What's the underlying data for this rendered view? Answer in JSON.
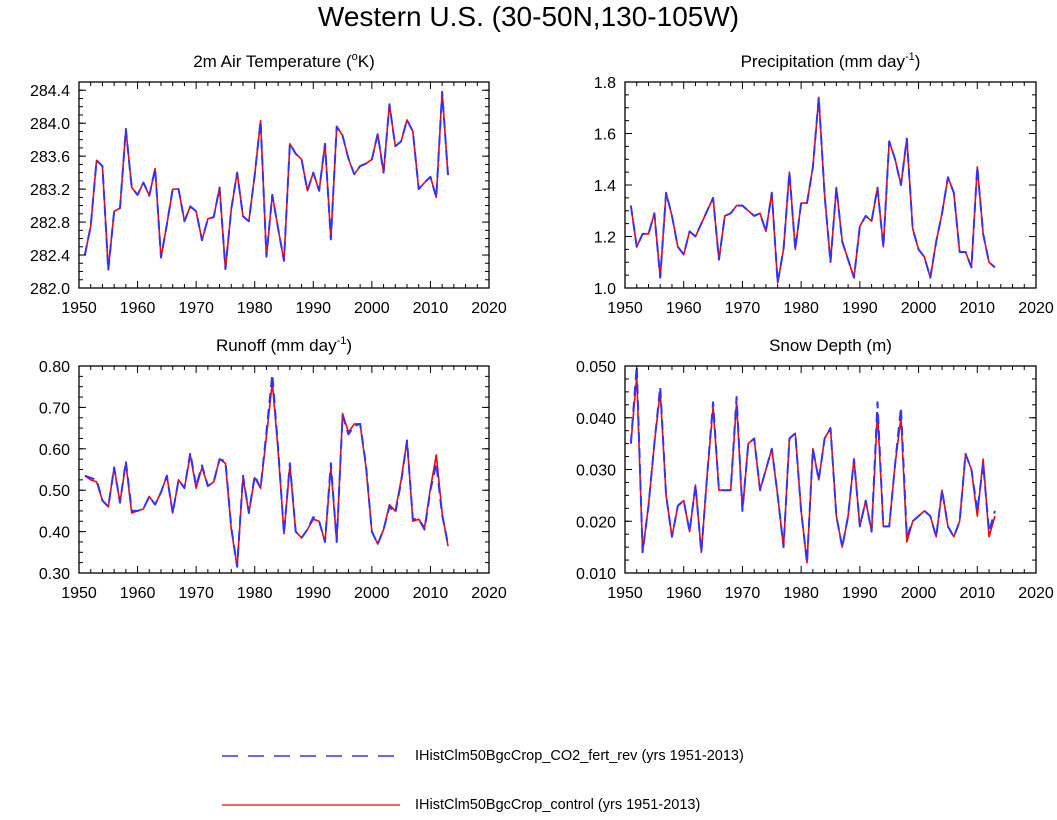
{
  "title": "Western U.S. (30-50N,130-105W)",
  "colors": {
    "series_a": "#3333ff",
    "series_b": "#ff0000",
    "axis": "#000000"
  },
  "legend": {
    "position": "bottom-center",
    "entries": [
      {
        "label": "IHistClm50BgcCrop_CO2_fert_rev (yrs 1951-2013)",
        "color": "#3333ff",
        "style": "dashed"
      },
      {
        "label": "IHistClm50BgcCrop_control (yrs 1951-2013)",
        "color": "#ff0000",
        "style": "solid"
      }
    ]
  },
  "chart_data": [
    {
      "type": "line",
      "title": "2m Air Temperature (",
      "title_sup": "o",
      "title_after": "K)",
      "xlim": [
        1950,
        2020
      ],
      "xticks": [
        1950,
        1960,
        1970,
        1980,
        1990,
        2000,
        2010,
        2020
      ],
      "ylim": [
        282.0,
        284.5
      ],
      "yticks": [
        282.0,
        282.4,
        282.8,
        283.2,
        283.6,
        284.0,
        284.4
      ],
      "ytick_labels": [
        "282.0",
        "282.4",
        "282.8",
        "283.2",
        "283.6",
        "284.0",
        "284.4"
      ],
      "x_start": 1951,
      "series": [
        {
          "values": [
            282.4,
            282.75,
            283.55,
            283.48,
            282.22,
            282.93,
            282.97,
            283.93,
            283.22,
            283.13,
            283.28,
            283.12,
            283.45,
            282.37,
            282.77,
            283.2,
            283.2,
            282.81,
            282.99,
            282.93,
            282.58,
            282.84,
            282.86,
            283.22,
            282.23,
            282.96,
            283.4,
            282.87,
            282.81,
            283.37,
            284.03,
            282.38,
            283.13,
            282.72,
            282.33,
            283.75,
            283.63,
            283.56,
            283.18,
            283.4,
            283.18,
            283.75,
            282.59,
            283.96,
            283.85,
            283.57,
            283.38,
            283.48,
            283.51,
            283.56,
            283.87,
            283.4,
            284.23,
            283.72,
            283.78,
            284.04,
            283.9,
            283.2,
            283.28,
            283.35,
            283.1,
            284.38,
            283.37
          ]
        },
        {
          "values": [
            282.4,
            282.75,
            283.55,
            283.48,
            282.22,
            282.93,
            282.97,
            283.93,
            283.22,
            283.13,
            283.28,
            283.12,
            283.45,
            282.37,
            282.77,
            283.2,
            283.2,
            282.81,
            282.99,
            282.93,
            282.58,
            282.84,
            282.86,
            283.22,
            282.23,
            282.96,
            283.4,
            282.87,
            282.81,
            283.37,
            284.03,
            282.38,
            283.13,
            282.72,
            282.33,
            283.75,
            283.63,
            283.56,
            283.18,
            283.4,
            283.18,
            283.75,
            282.59,
            283.96,
            283.85,
            283.57,
            283.38,
            283.48,
            283.51,
            283.56,
            283.87,
            283.4,
            284.23,
            283.72,
            283.78,
            284.04,
            283.9,
            283.2,
            283.28,
            283.35,
            283.1,
            284.38,
            283.37
          ]
        }
      ]
    },
    {
      "type": "line",
      "title": "Precipitation (mm day",
      "title_sup": "-1",
      "title_after": ")",
      "xlim": [
        1950,
        2020
      ],
      "xticks": [
        1950,
        1960,
        1970,
        1980,
        1990,
        2000,
        2010,
        2020
      ],
      "ylim": [
        1.0,
        1.8
      ],
      "yticks": [
        1.0,
        1.2,
        1.4,
        1.6,
        1.8
      ],
      "ytick_labels": [
        "1.0",
        "1.2",
        "1.4",
        "1.6",
        "1.8"
      ],
      "x_start": 1951,
      "series": [
        {
          "values": [
            1.32,
            1.16,
            1.21,
            1.21,
            1.29,
            1.04,
            1.37,
            1.28,
            1.16,
            1.13,
            1.22,
            1.2,
            1.25,
            1.3,
            1.35,
            1.11,
            1.28,
            1.29,
            1.32,
            1.32,
            1.3,
            1.28,
            1.29,
            1.22,
            1.37,
            1.02,
            1.15,
            1.45,
            1.15,
            1.33,
            1.33,
            1.47,
            1.74,
            1.36,
            1.1,
            1.39,
            1.18,
            1.11,
            1.04,
            1.24,
            1.28,
            1.26,
            1.39,
            1.16,
            1.57,
            1.5,
            1.4,
            1.58,
            1.23,
            1.15,
            1.12,
            1.04,
            1.18,
            1.29,
            1.43,
            1.37,
            1.14,
            1.14,
            1.08,
            1.47,
            1.21,
            1.1,
            1.08
          ]
        },
        {
          "values": [
            1.32,
            1.16,
            1.21,
            1.21,
            1.29,
            1.04,
            1.37,
            1.28,
            1.16,
            1.13,
            1.22,
            1.2,
            1.25,
            1.3,
            1.35,
            1.11,
            1.28,
            1.29,
            1.32,
            1.32,
            1.3,
            1.28,
            1.29,
            1.22,
            1.37,
            1.02,
            1.15,
            1.45,
            1.15,
            1.33,
            1.33,
            1.47,
            1.74,
            1.36,
            1.1,
            1.39,
            1.18,
            1.11,
            1.04,
            1.24,
            1.28,
            1.26,
            1.39,
            1.16,
            1.57,
            1.5,
            1.4,
            1.58,
            1.23,
            1.15,
            1.12,
            1.04,
            1.18,
            1.29,
            1.43,
            1.37,
            1.14,
            1.14,
            1.08,
            1.47,
            1.21,
            1.1,
            1.08
          ]
        }
      ]
    },
    {
      "type": "line",
      "title": "Runoff (mm day",
      "title_sup": "-1",
      "title_after": ")",
      "xlim": [
        1950,
        2020
      ],
      "xticks": [
        1950,
        1960,
        1970,
        1980,
        1990,
        2000,
        2010,
        2020
      ],
      "ylim": [
        0.3,
        0.8
      ],
      "yticks": [
        0.3,
        0.4,
        0.5,
        0.6,
        0.7,
        0.8
      ],
      "ytick_labels": [
        "0.30",
        "0.40",
        "0.50",
        "0.60",
        "0.70",
        "0.80"
      ],
      "x_start": 1951,
      "series": [
        {
          "values": [
            0.535,
            0.53,
            0.525,
            0.475,
            0.46,
            0.555,
            0.47,
            0.57,
            0.45,
            0.45,
            0.455,
            0.485,
            0.465,
            0.495,
            0.535,
            0.445,
            0.525,
            0.505,
            0.59,
            0.51,
            0.56,
            0.51,
            0.52,
            0.575,
            0.57,
            0.41,
            0.315,
            0.535,
            0.445,
            0.535,
            0.505,
            0.64,
            0.78,
            0.6,
            0.395,
            0.565,
            0.4,
            0.385,
            0.405,
            0.435,
            0.425,
            0.375,
            0.565,
            0.375,
            0.68,
            0.635,
            0.655,
            0.66,
            0.56,
            0.4,
            0.37,
            0.405,
            0.46,
            0.445,
            0.52,
            0.62,
            0.43,
            0.43,
            0.405,
            0.5,
            0.565,
            0.44,
            0.37
          ]
        },
        {
          "values": [
            0.535,
            0.525,
            0.52,
            0.475,
            0.46,
            0.555,
            0.47,
            0.565,
            0.445,
            0.45,
            0.455,
            0.485,
            0.465,
            0.495,
            0.535,
            0.445,
            0.525,
            0.505,
            0.585,
            0.505,
            0.555,
            0.51,
            0.52,
            0.575,
            0.565,
            0.405,
            0.315,
            0.53,
            0.445,
            0.53,
            0.505,
            0.63,
            0.76,
            0.595,
            0.395,
            0.56,
            0.4,
            0.385,
            0.405,
            0.43,
            0.425,
            0.375,
            0.555,
            0.375,
            0.685,
            0.64,
            0.66,
            0.66,
            0.555,
            0.4,
            0.37,
            0.405,
            0.465,
            0.45,
            0.525,
            0.62,
            0.425,
            0.43,
            0.41,
            0.505,
            0.585,
            0.445,
            0.365
          ]
        }
      ]
    },
    {
      "type": "line",
      "title": "Snow Depth (m)",
      "title_sup": "",
      "title_after": "",
      "xlim": [
        1950,
        2020
      ],
      "xticks": [
        1950,
        1960,
        1970,
        1980,
        1990,
        2000,
        2010,
        2020
      ],
      "ylim": [
        0.01,
        0.05
      ],
      "yticks": [
        0.01,
        0.02,
        0.03,
        0.04,
        0.05
      ],
      "ytick_labels": [
        "0.010",
        "0.020",
        "0.030",
        "0.040",
        "0.050"
      ],
      "x_start": 1951,
      "series": [
        {
          "values": [
            0.035,
            0.05,
            0.014,
            0.023,
            0.035,
            0.046,
            0.025,
            0.017,
            0.023,
            0.024,
            0.018,
            0.027,
            0.014,
            0.029,
            0.043,
            0.026,
            0.026,
            0.026,
            0.044,
            0.022,
            0.035,
            0.036,
            0.026,
            0.03,
            0.034,
            0.025,
            0.015,
            0.036,
            0.037,
            0.022,
            0.012,
            0.034,
            0.028,
            0.036,
            0.038,
            0.021,
            0.015,
            0.021,
            0.032,
            0.019,
            0.024,
            0.018,
            0.043,
            0.019,
            0.019,
            0.031,
            0.042,
            0.017,
            0.02,
            0.021,
            0.022,
            0.021,
            0.017,
            0.026,
            0.019,
            0.017,
            0.02,
            0.033,
            0.03,
            0.022,
            0.031,
            0.018,
            0.022
          ]
        },
        {
          "values": [
            0.035,
            0.048,
            0.014,
            0.023,
            0.035,
            0.045,
            0.025,
            0.017,
            0.023,
            0.024,
            0.018,
            0.027,
            0.014,
            0.029,
            0.042,
            0.026,
            0.026,
            0.026,
            0.043,
            0.022,
            0.035,
            0.036,
            0.026,
            0.03,
            0.034,
            0.025,
            0.015,
            0.036,
            0.037,
            0.022,
            0.012,
            0.034,
            0.028,
            0.036,
            0.038,
            0.021,
            0.015,
            0.021,
            0.032,
            0.019,
            0.024,
            0.018,
            0.041,
            0.019,
            0.019,
            0.031,
            0.04,
            0.016,
            0.02,
            0.021,
            0.022,
            0.021,
            0.017,
            0.026,
            0.019,
            0.017,
            0.02,
            0.033,
            0.03,
            0.021,
            0.032,
            0.017,
            0.021
          ]
        }
      ]
    }
  ]
}
